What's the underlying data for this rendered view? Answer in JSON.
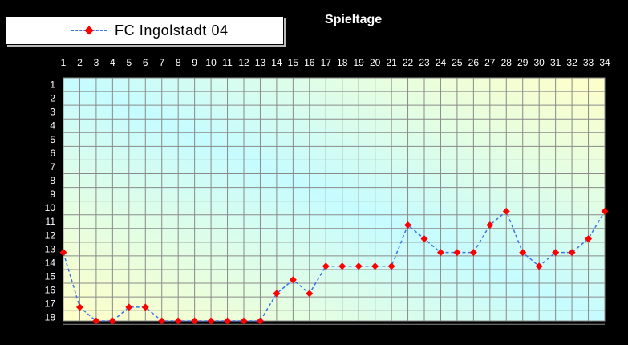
{
  "chart_data": {
    "type": "line",
    "title": "Spieltage",
    "x": [
      1,
      2,
      3,
      4,
      5,
      6,
      7,
      8,
      9,
      10,
      11,
      12,
      13,
      14,
      15,
      16,
      17,
      18,
      19,
      20,
      21,
      22,
      23,
      24,
      25,
      26,
      27,
      28,
      29,
      30,
      31,
      32,
      33,
      34
    ],
    "y_ticks": [
      1,
      2,
      3,
      4,
      5,
      6,
      7,
      8,
      9,
      10,
      11,
      12,
      13,
      14,
      15,
      16,
      17,
      18
    ],
    "xlim": [
      1,
      34
    ],
    "ylim": [
      1,
      18
    ],
    "y_inverted": true,
    "x_axis_position": "top",
    "grid": true,
    "legend_position": "top-left",
    "series": [
      {
        "name": "FC Ingolstadt 04",
        "color": "#3b73e8",
        "marker_color": "#ff0000",
        "line_style": "dashed",
        "marker": "diamond",
        "values": [
          13,
          17,
          18,
          18,
          17,
          17,
          18,
          18,
          18,
          18,
          18,
          18,
          18,
          16,
          15,
          16,
          14,
          14,
          14,
          14,
          14,
          11,
          12,
          13,
          13,
          13,
          11,
          10,
          13,
          14,
          13,
          13,
          12,
          10
        ]
      }
    ]
  }
}
